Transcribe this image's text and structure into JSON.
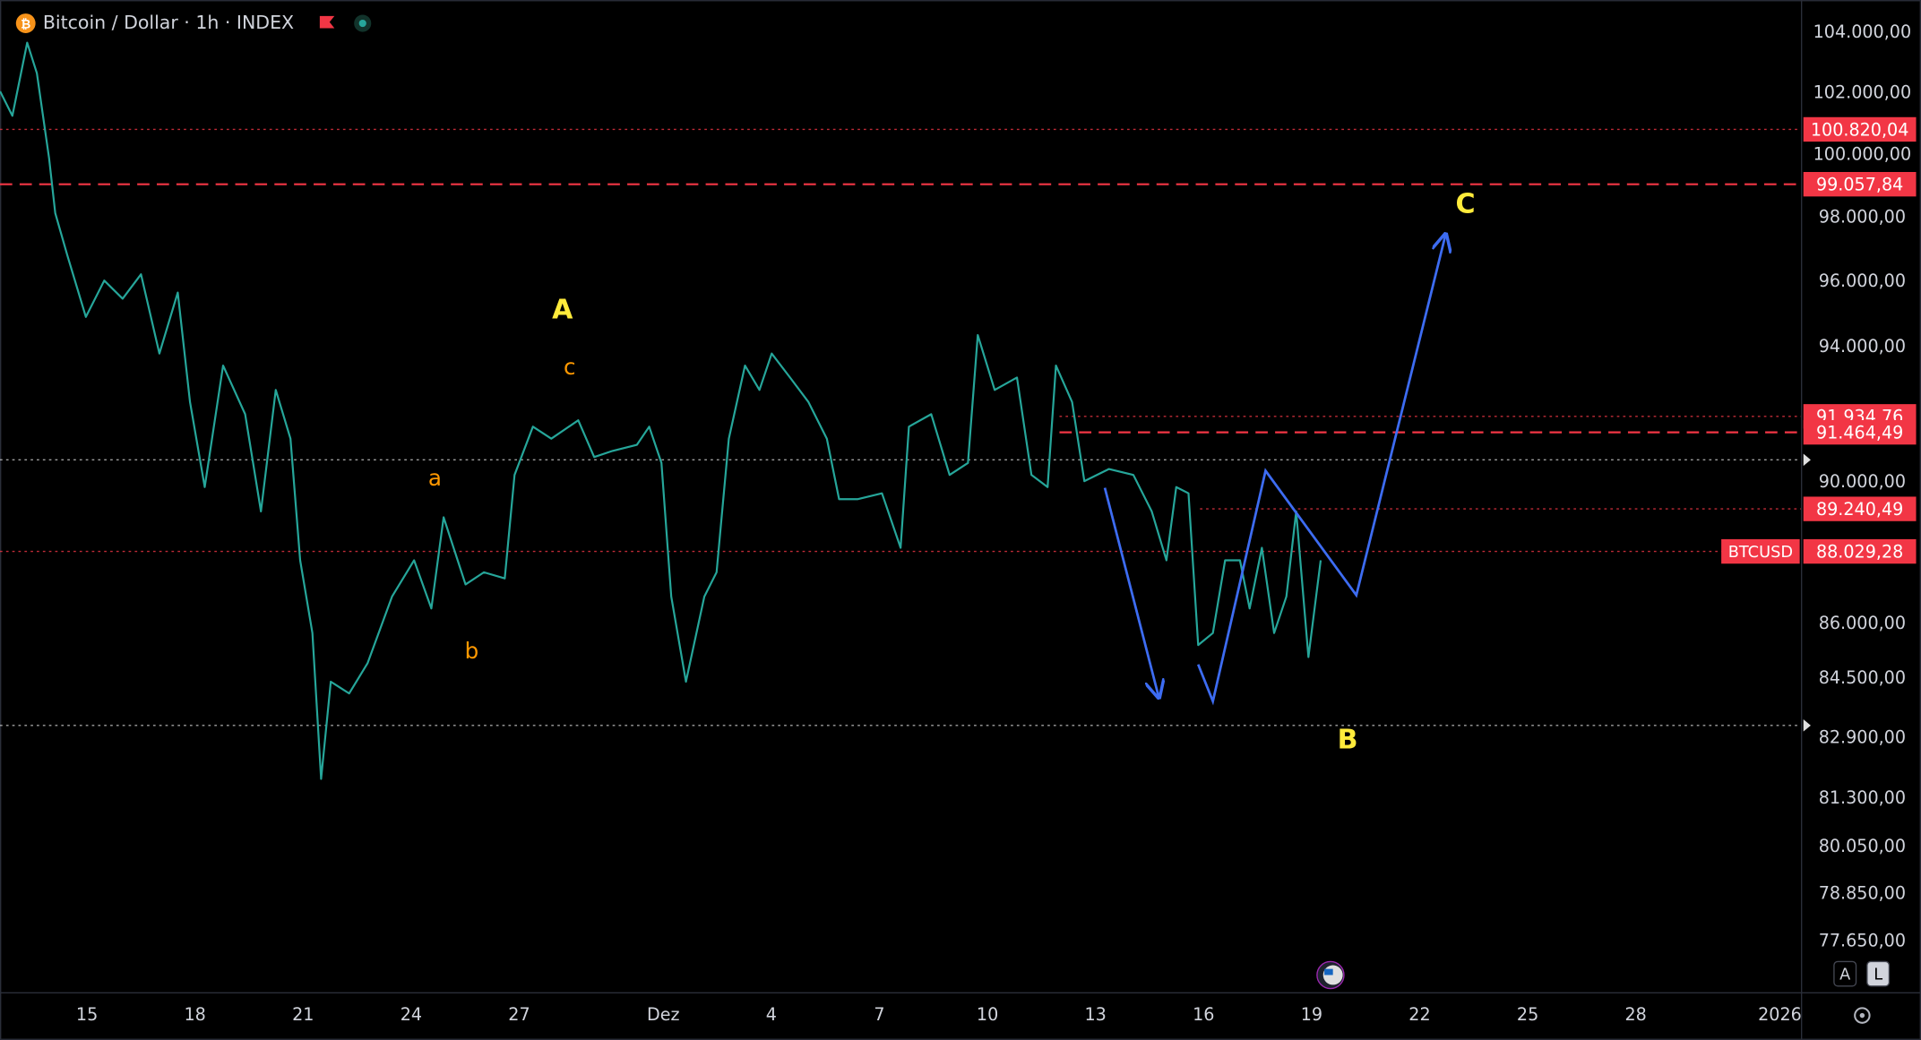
{
  "header": {
    "title": "Bitcoin / Dollar · 1h · INDEX"
  },
  "ui": {
    "buttons": [
      "A",
      "L"
    ]
  },
  "chart_data": {
    "type": "line",
    "log_scale": true,
    "xlim": [
      -2.415,
      47.585
    ],
    "ylim": [
      76400,
      105100
    ],
    "xticks": [
      {
        "value": 0,
        "label": "15"
      },
      {
        "value": 3,
        "label": "18"
      },
      {
        "value": 6,
        "label": "21"
      },
      {
        "value": 9,
        "label": "24"
      },
      {
        "value": 12,
        "label": "27"
      },
      {
        "value": 16,
        "label": "Dez"
      },
      {
        "value": 19,
        "label": "4"
      },
      {
        "value": 22,
        "label": "7"
      },
      {
        "value": 25,
        "label": "10"
      },
      {
        "value": 28,
        "label": "13"
      },
      {
        "value": 31,
        "label": "16"
      },
      {
        "value": 34,
        "label": "19"
      },
      {
        "value": 37,
        "label": "22"
      },
      {
        "value": 40,
        "label": "25"
      },
      {
        "value": 43,
        "label": "28"
      },
      {
        "value": 47,
        "label": "2026"
      }
    ],
    "yticks": [
      {
        "value": 104000,
        "label": "104.000,00"
      },
      {
        "value": 102000,
        "label": "102.000,00"
      },
      {
        "value": 100000,
        "label": "100.000,00"
      },
      {
        "value": 98000,
        "label": "98.000,00"
      },
      {
        "value": 96000,
        "label": "96.000,00"
      },
      {
        "value": 94000,
        "label": "94.000,00"
      },
      {
        "value": 90000,
        "label": "90.000,00"
      },
      {
        "value": 86000,
        "label": "86.000,00"
      },
      {
        "value": 84500,
        "label": "84.500,00"
      },
      {
        "value": 82900,
        "label": "82.900,00"
      },
      {
        "value": 81300,
        "label": "81.300,00"
      },
      {
        "value": 80050,
        "label": "80.050,00"
      },
      {
        "value": 78850,
        "label": "78.850,00"
      },
      {
        "value": 77650,
        "label": "77.650,00"
      }
    ],
    "series": [
      {
        "color": "#26a69a",
        "x": [
          -2.41,
          -2.07,
          -1.66,
          -1.39,
          -1.05,
          -0.88,
          -0.54,
          -0.03,
          0.48,
          0.99,
          1.5,
          2.01,
          2.52,
          2.86,
          3.27,
          3.78,
          4.39,
          4.83,
          5.24,
          5.65,
          5.92,
          6.26,
          6.5,
          6.77,
          7.28,
          7.79,
          8.47,
          9.08,
          9.56,
          9.9,
          10.51,
          11.02,
          11.6,
          11.87,
          12.38,
          12.89,
          13.64,
          14.08,
          14.59,
          15.27,
          15.61,
          15.95,
          16.22,
          16.63,
          17.14,
          17.48,
          17.82,
          18.27,
          18.67,
          19.01,
          19.52,
          20.03,
          20.54,
          20.88,
          21.39,
          22.07,
          22.59,
          22.82,
          23.44,
          23.95,
          24.46,
          24.73,
          25.2,
          25.82,
          26.22,
          26.67,
          26.9,
          27.35,
          27.69,
          28.37,
          29.05,
          29.56,
          29.97,
          30.24,
          30.58,
          30.85,
          31.26,
          31.6,
          32.01,
          32.28,
          32.62,
          32.96,
          33.3,
          33.57,
          33.91,
          34.25
        ],
        "values": [
          102060,
          101260,
          103670,
          102660,
          99880,
          98140,
          96800,
          94920,
          96040,
          95480,
          96230,
          93810,
          95670,
          92360,
          89870,
          93450,
          92000,
          89170,
          92720,
          91280,
          87780,
          85750,
          81820,
          84420,
          84100,
          84920,
          86760,
          87780,
          86430,
          89000,
          87100,
          87440,
          87270,
          90220,
          91630,
          91280,
          91820,
          90740,
          90920,
          91100,
          91630,
          90570,
          86760,
          84420,
          86760,
          87440,
          91280,
          93450,
          92720,
          93810,
          93090,
          92360,
          91280,
          89520,
          89520,
          89690,
          88130,
          91630,
          92000,
          90220,
          90570,
          94370,
          92720,
          93090,
          90220,
          89870,
          93450,
          92360,
          90040,
          90390,
          90220,
          89170,
          87780,
          89870,
          89690,
          85420,
          85750,
          87780,
          87780,
          86430,
          88130,
          85750,
          86760,
          89170,
          85090,
          87780
        ]
      }
    ],
    "levels": [
      {
        "value": 100820.04,
        "label": "100.820,04",
        "style": "dotted",
        "color": "#f23645"
      },
      {
        "value": 99057.84,
        "label": "99.057,84",
        "style": "dashed",
        "color": "#f23645"
      },
      {
        "value": 91934.76,
        "label": "91.934,76",
        "style": "dotted",
        "color": "#f23645",
        "start_x": 27.0
      },
      {
        "value": 91464.49,
        "label": "91.464,49",
        "style": "dashed",
        "color": "#f23645",
        "start_x": 27.0
      },
      {
        "value": 89240.49,
        "label": "89.240,49",
        "style": "dotted",
        "color": "#f23645",
        "start_x": 30.9
      },
      {
        "value": 88029.28,
        "label": "88.029,28",
        "name": "BTCUSD",
        "style": "dotted",
        "color": "#f23645"
      },
      {
        "value": 90660,
        "style": "dotted",
        "color": "#c8c8c8"
      },
      {
        "value": 83240,
        "style": "dotted",
        "color": "#c8c8c8"
      }
    ],
    "projections": [
      {
        "color": "#3d6cf2",
        "x": [
          28.26,
          29.76
        ],
        "y": [
          89850,
          83990
        ]
      },
      {
        "color": "#3d6cf2",
        "x": [
          30.85,
          31.26,
          32.72,
          35.24,
          37.72
        ],
        "y": [
          84890,
          83890,
          90340,
          86800,
          97480
        ]
      }
    ],
    "annotations": [
      {
        "text": "A",
        "x": 13.2,
        "y": 95110,
        "color": "#ffeb3b"
      },
      {
        "text": "c",
        "x": 13.4,
        "y": 93370,
        "color": "#ff9800"
      },
      {
        "text": "a",
        "x": 9.66,
        "y": 90090,
        "color": "#ff9800"
      },
      {
        "text": "b",
        "x": 10.68,
        "y": 85220,
        "color": "#ff9800"
      },
      {
        "text": "B",
        "x": 35.0,
        "y": 82830,
        "color": "#ffeb3b"
      },
      {
        "text": "C",
        "x": 38.27,
        "y": 98400,
        "color": "#ffeb3b"
      }
    ]
  }
}
